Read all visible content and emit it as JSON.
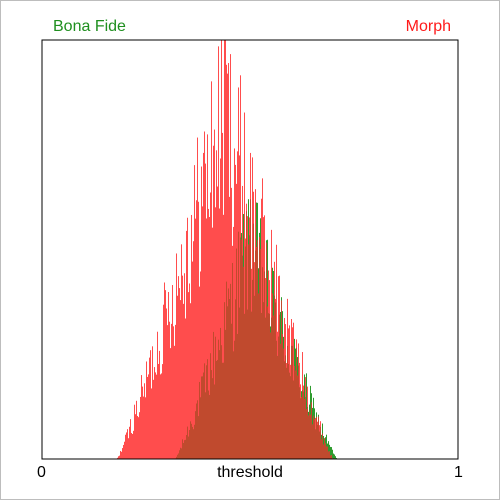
{
  "chart_data": {
    "type": "histogram",
    "title": "",
    "xlabel": "threshold",
    "ylabel": "",
    "xlim": [
      0,
      1
    ],
    "x_tick_labels": [
      "0",
      "1"
    ],
    "grid": false,
    "legend": {
      "placement": "top"
    },
    "series": [
      {
        "name": "Bona Fide",
        "color": "#1f8f1f",
        "fill": "#2e9b2e",
        "range": [
          0.32,
          0.71
        ],
        "peak_x": 0.5,
        "relative_peak": 0.62
      },
      {
        "name": "Morph",
        "color": "#ff1a1a",
        "fill": "#ff4d4d",
        "range": [
          0.18,
          0.7
        ],
        "peak_x": 0.44,
        "relative_peak": 1.0
      }
    ],
    "overlap_color": "#c04a2e"
  }
}
